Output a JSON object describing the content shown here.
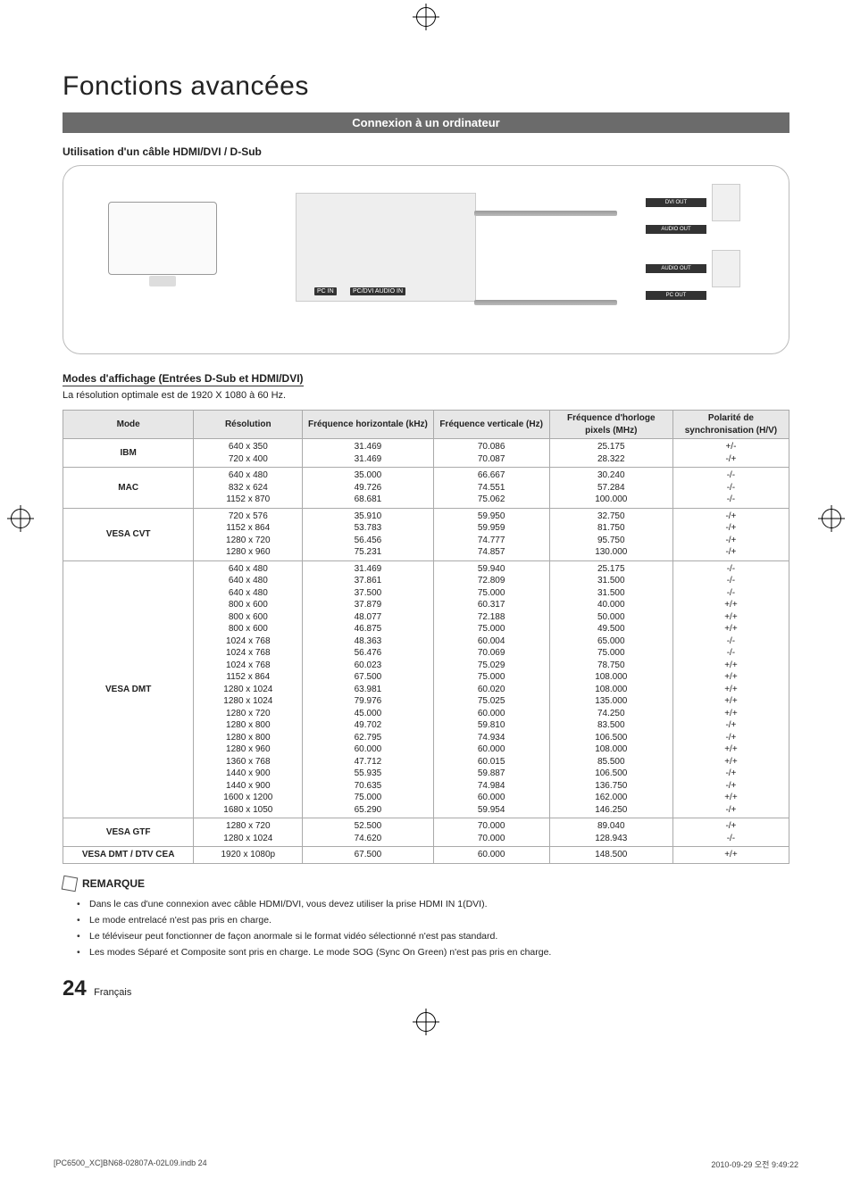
{
  "page": {
    "title": "Fonctions avancées",
    "section_bar": "Connexion à un ordinateur",
    "cable_heading": "Utilisation d'un câble HDMI/DVI / D-Sub",
    "modes_heading": "Modes d'affichage (Entrées D-Sub et HDMI/DVI)",
    "resolution_note": "La résolution optimale est de 1920 X 1080 à 60 Hz.",
    "remark_label": "REMARQUE",
    "page_number": "24",
    "page_lang": "Français",
    "print_file": "[PC6500_XC]BN68-02807A-02L09.indb   24",
    "print_date": "2010-09-29   오전 9:49:22"
  },
  "diagram": {
    "ports_tv": {
      "pcin": "PC IN",
      "pcdvi_audio": "PC/DVI\nAUDIO IN"
    },
    "ports_pc": {
      "dvi_out": "DVI OUT",
      "audio_out": "AUDIO OUT",
      "pc_out": "PC OUT"
    }
  },
  "table": {
    "headers": [
      "Mode",
      "Résolution",
      "Fréquence horizontale (kHz)",
      "Fréquence verticale (Hz)",
      "Fréquence d'horloge pixels (MHz)",
      "Polarité de synchronisation (H/V)"
    ],
    "groups": [
      {
        "mode": "IBM",
        "rows": [
          [
            "640 x 350",
            "31.469",
            "70.086",
            "25.175",
            "+/-"
          ],
          [
            "720 x 400",
            "31.469",
            "70.087",
            "28.322",
            "-/+"
          ]
        ]
      },
      {
        "mode": "MAC",
        "rows": [
          [
            "640 x 480",
            "35.000",
            "66.667",
            "30.240",
            "-/-"
          ],
          [
            "832 x 624",
            "49.726",
            "74.551",
            "57.284",
            "-/-"
          ],
          [
            "1152 x 870",
            "68.681",
            "75.062",
            "100.000",
            "-/-"
          ]
        ]
      },
      {
        "mode": "VESA CVT",
        "rows": [
          [
            "720 x 576",
            "35.910",
            "59.950",
            "32.750",
            "-/+"
          ],
          [
            "1152 x 864",
            "53.783",
            "59.959",
            "81.750",
            "-/+"
          ],
          [
            "1280 x 720",
            "56.456",
            "74.777",
            "95.750",
            "-/+"
          ],
          [
            "1280 x 960",
            "75.231",
            "74.857",
            "130.000",
            "-/+"
          ]
        ]
      },
      {
        "mode": "VESA DMT",
        "rows": [
          [
            "640 x 480",
            "31.469",
            "59.940",
            "25.175",
            "-/-"
          ],
          [
            "640 x 480",
            "37.861",
            "72.809",
            "31.500",
            "-/-"
          ],
          [
            "640 x 480",
            "37.500",
            "75.000",
            "31.500",
            "-/-"
          ],
          [
            "800 x 600",
            "37.879",
            "60.317",
            "40.000",
            "+/+"
          ],
          [
            "800 x 600",
            "48.077",
            "72.188",
            "50.000",
            "+/+"
          ],
          [
            "800 x 600",
            "46.875",
            "75.000",
            "49.500",
            "+/+"
          ],
          [
            "1024 x 768",
            "48.363",
            "60.004",
            "65.000",
            "-/-"
          ],
          [
            "1024 x 768",
            "56.476",
            "70.069",
            "75.000",
            "-/-"
          ],
          [
            "1024 x 768",
            "60.023",
            "75.029",
            "78.750",
            "+/+"
          ],
          [
            "1152 x 864",
            "67.500",
            "75.000",
            "108.000",
            "+/+"
          ],
          [
            "1280 x 1024",
            "63.981",
            "60.020",
            "108.000",
            "+/+"
          ],
          [
            "1280 x 1024",
            "79.976",
            "75.025",
            "135.000",
            "+/+"
          ],
          [
            "1280 x 720",
            "45.000",
            "60.000",
            "74.250",
            "+/+"
          ],
          [
            "1280 x 800",
            "49.702",
            "59.810",
            "83.500",
            "-/+"
          ],
          [
            "1280 x 800",
            "62.795",
            "74.934",
            "106.500",
            "-/+"
          ],
          [
            "1280 x 960",
            "60.000",
            "60.000",
            "108.000",
            "+/+"
          ],
          [
            "1360 x 768",
            "47.712",
            "60.015",
            "85.500",
            "+/+"
          ],
          [
            "1440 x 900",
            "55.935",
            "59.887",
            "106.500",
            "-/+"
          ],
          [
            "1440 x 900",
            "70.635",
            "74.984",
            "136.750",
            "-/+"
          ],
          [
            "1600 x 1200",
            "75.000",
            "60.000",
            "162.000",
            "+/+"
          ],
          [
            "1680 x 1050",
            "65.290",
            "59.954",
            "146.250",
            "-/+"
          ]
        ]
      },
      {
        "mode": "VESA GTF",
        "rows": [
          [
            "1280 x 720",
            "52.500",
            "70.000",
            "89.040",
            "-/+"
          ],
          [
            "1280 x 1024",
            "74.620",
            "70.000",
            "128.943",
            "-/-"
          ]
        ]
      },
      {
        "mode": "VESA DMT / DTV CEA",
        "rows": [
          [
            "1920 x 1080p",
            "67.500",
            "60.000",
            "148.500",
            "+/+"
          ]
        ]
      }
    ]
  },
  "remarks": [
    "Dans le cas d'une connexion avec câble HDMI/DVI, vous devez utiliser la prise HDMI IN 1(DVI).",
    "Le mode entrelacé n'est pas pris en charge.",
    "Le téléviseur peut fonctionner de façon anormale si le format vidéo sélectionné n'est pas standard.",
    "Les modes Séparé et Composite sont pris en charge. Le mode SOG (Sync On Green) n'est pas pris en charge."
  ],
  "style": {
    "colors": {
      "section_bar_bg": "#6b6b6b",
      "section_bar_fg": "#ffffff",
      "table_border": "#aaaaaa",
      "table_header_bg": "#e7e7e7",
      "text": "#222222",
      "diagram_border": "#bbbbbb"
    },
    "fonts": {
      "title_size_pt": 30,
      "body_size_pt": 11,
      "table_size_pt": 10
    },
    "column_widths_pct": [
      18,
      15,
      18,
      16,
      17,
      16
    ]
  }
}
